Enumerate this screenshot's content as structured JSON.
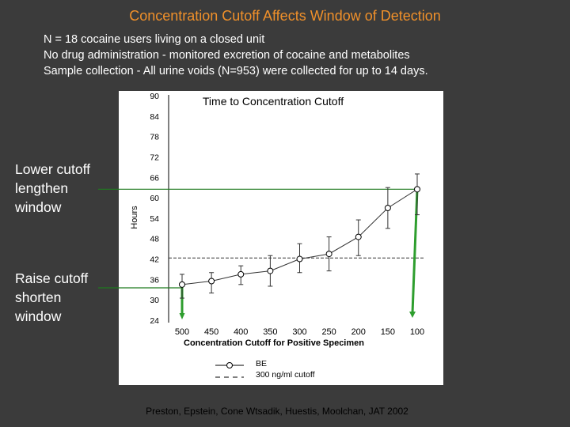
{
  "slide": {
    "title": "Concentration Cutoff Affects Window of Detection",
    "intro_lines": [
      "N = 18 cocaine users living on a closed unit",
      "No drug administration - monitored excretion of cocaine and metabolites",
      "Sample collection -  All urine voids (N=953) were collected for up to 14 days."
    ],
    "lower_note_lines": [
      "Lower cutoff",
      "lengthen",
      "window"
    ],
    "raise_note_lines": [
      "Raise cutoff",
      "shorten",
      "window"
    ],
    "citation": "Preston, Epstein, Cone Wtsadik, Huestis, Moolchan, JAT 2002"
  },
  "colors": {
    "background": "#3b3b3b",
    "title": "#f0902a",
    "plot_bg": "#ffffff",
    "indicator_line": "#1f7a1f",
    "indicator_arrow": "#2e9e2e"
  },
  "chart_data": {
    "type": "line",
    "title": "Time to Concentration Cutoff",
    "ylabel": "Hours",
    "xlabel": "Concentration Cutoff for Positive Specimen",
    "categories": [
      "500",
      "450",
      "400",
      "350",
      "300",
      "250",
      "200",
      "150",
      "100"
    ],
    "y_ticks": [
      "90",
      "84",
      "78",
      "72",
      "66",
      "60",
      "54",
      "48",
      "42",
      "36",
      "30",
      "24"
    ],
    "ylim": [
      24,
      90
    ],
    "grid": false,
    "legend": {
      "position": "bottom",
      "entries": [
        {
          "name": "BE",
          "style": "line-with-open-circle"
        },
        {
          "name": "300 ng/ml cutoff",
          "style": "dashed-line"
        }
      ]
    },
    "series": [
      {
        "name": "BE",
        "values": [
          34.5,
          35.5,
          37.5,
          38.5,
          42,
          43.5,
          48.5,
          57,
          62.5
        ],
        "error_low": [
          30.5,
          32,
          34.5,
          34,
          38,
          38.5,
          43,
          51,
          55
        ],
        "error_high": [
          37.5,
          38,
          40,
          43,
          46.5,
          48.5,
          53.5,
          63,
          67
        ]
      }
    ],
    "reference_line": {
      "name": "300 ng/ml cutoff",
      "value": 42.3
    }
  }
}
